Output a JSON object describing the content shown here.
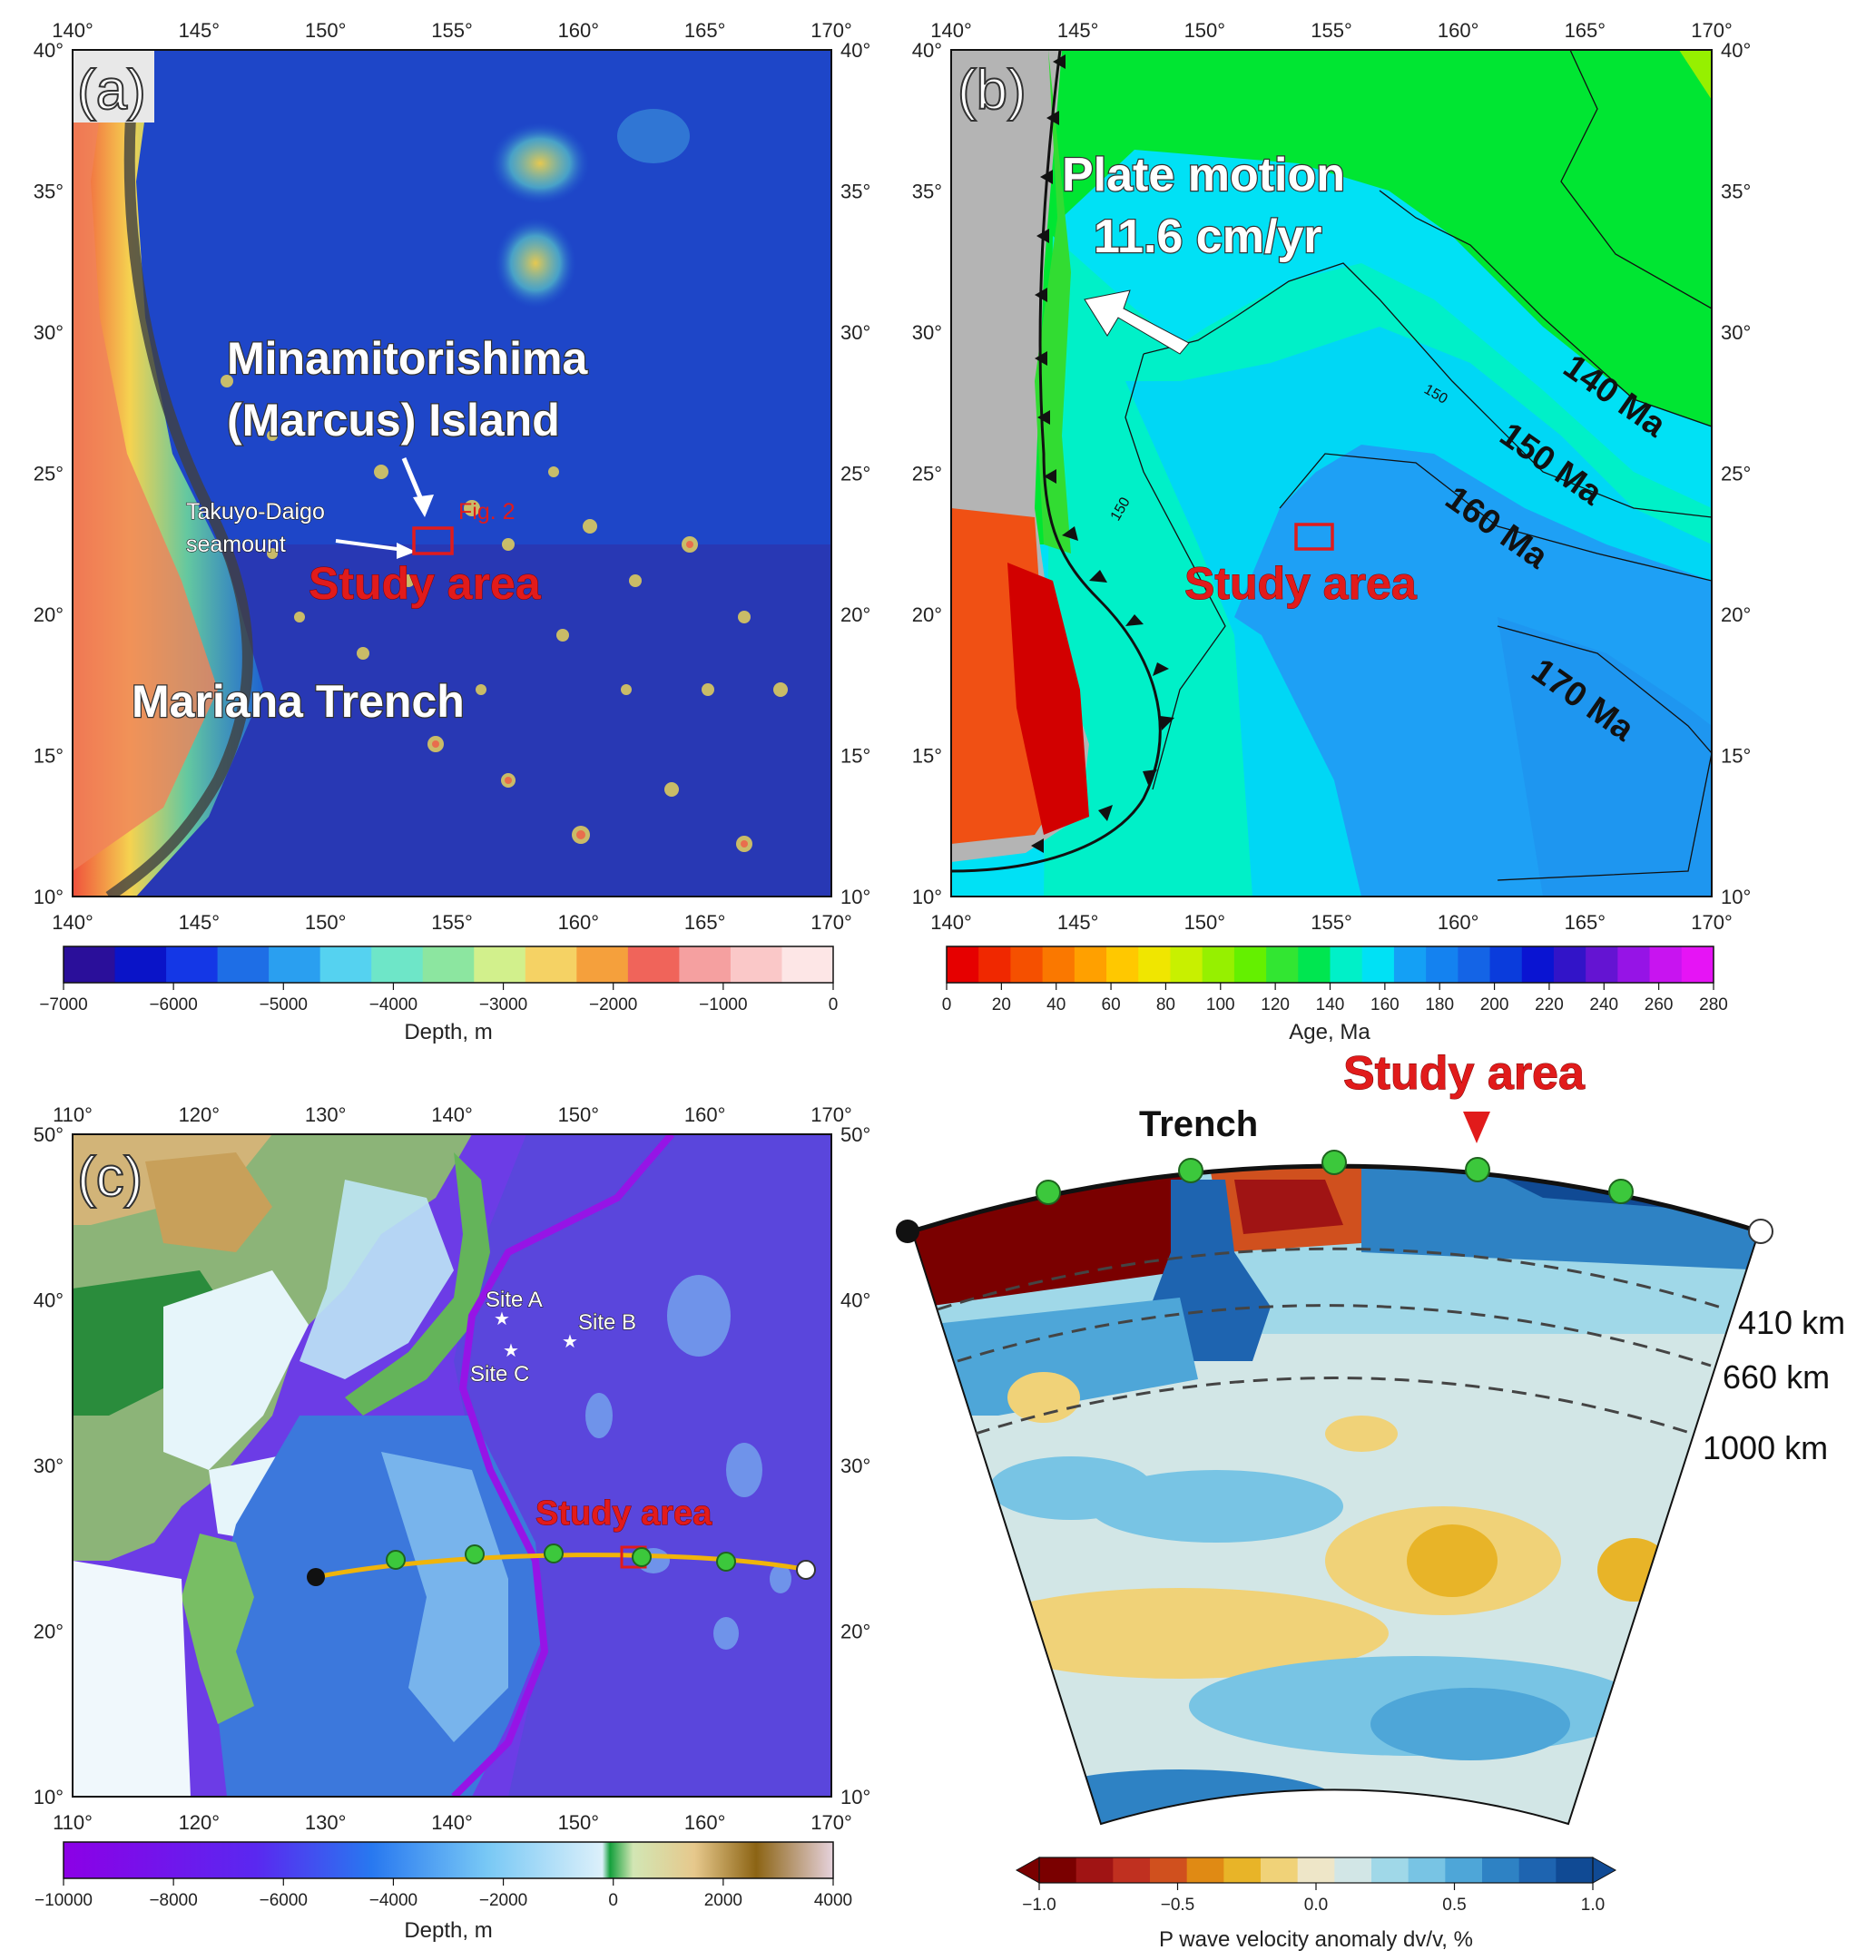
{
  "panel_a": {
    "label": "(a)",
    "lon_ticks": [
      "140°",
      "145°",
      "150°",
      "155°",
      "160°",
      "165°",
      "170°"
    ],
    "lat_ticks": [
      "40°",
      "35°",
      "30°",
      "25°",
      "20°",
      "15°",
      "10°"
    ],
    "title_island_line1": "Minamitorishima",
    "title_island_line2": "(Marcus) Island",
    "seamount_line1": "Takuyo-Daigo",
    "seamount_line2": "seamount",
    "fig_ref": "Fig. 2",
    "study_area": "Study area",
    "trench": "Mariana Trench",
    "colorbar": {
      "label": "Depth, m",
      "ticks": [
        "−7000",
        "−6000",
        "−5000",
        "−4000",
        "−3000",
        "−2000",
        "−1000",
        "0"
      ],
      "colors": [
        "#2a0f9a",
        "#0a14c8",
        "#1437e6",
        "#1e6ee6",
        "#2a9ff0",
        "#55d2f0",
        "#6ee6c8",
        "#8ce6a0",
        "#d2f08c",
        "#f5d264",
        "#f5a03c",
        "#f0645a",
        "#f5a0a0",
        "#fac8c8",
        "#fde6e6"
      ]
    }
  },
  "panel_b": {
    "label": "(b)",
    "lon_ticks": [
      "140°",
      "145°",
      "150°",
      "155°",
      "160°",
      "165°",
      "170°"
    ],
    "lat_ticks": [
      "40°",
      "35°",
      "30°",
      "25°",
      "20°",
      "15°",
      "10°"
    ],
    "plate_motion_line1": "Plate motion",
    "plate_motion_line2": "11.6 cm/yr",
    "isochron_140": "140 Ma",
    "isochron_150": "150 Ma",
    "isochron_160": "160 Ma",
    "isochron_170": "170 Ma",
    "contour_150_a": "150",
    "contour_150_b": "150",
    "study_area": "Study area",
    "colorbar": {
      "label": "Age, Ma",
      "ticks": [
        "0",
        "20",
        "40",
        "60",
        "80",
        "100",
        "120",
        "140",
        "160",
        "180",
        "200",
        "220",
        "240",
        "260",
        "280"
      ],
      "colors": [
        "#e60000",
        "#f02800",
        "#f55000",
        "#fa7800",
        "#ffa000",
        "#ffc800",
        "#f0e600",
        "#c8f000",
        "#96f000",
        "#64f000",
        "#32e632",
        "#00e650",
        "#00f0c8",
        "#00e1f5",
        "#14a0f5",
        "#1482f0",
        "#1464e6",
        "#0a3cdc",
        "#0a14d2",
        "#3214c8",
        "#6414d2",
        "#9614e6",
        "#c814f0",
        "#e614f5"
      ]
    }
  },
  "panel_c": {
    "label": "(c)",
    "lon_ticks": [
      "110°",
      "120°",
      "130°",
      "140°",
      "150°",
      "160°",
      "170°"
    ],
    "lat_ticks": [
      "50°",
      "40°",
      "30°",
      "20°",
      "10°"
    ],
    "site_a": "Site A",
    "site_b": "Site B",
    "site_c": "Site C",
    "study_area": "Study area",
    "colorbar": {
      "label": "Depth, m",
      "ticks": [
        "−10000",
        "−8000",
        "−6000",
        "−4000",
        "−2000",
        "0",
        "2000",
        "4000"
      ]
    }
  },
  "panel_d": {
    "study_area": "Study area",
    "trench": "Trench",
    "depth_410": "410 km",
    "depth_660": "660 km",
    "depth_1000": "1000 km",
    "colorbar": {
      "label": "P wave velocity anomaly dv/v, %",
      "ticks": [
        "−1.0",
        "−0.5",
        "0.0",
        "0.5",
        "1.0"
      ],
      "colors": [
        "#7a0000",
        "#a01414",
        "#c03020",
        "#d0501e",
        "#e08a14",
        "#e8b428",
        "#f0d278",
        "#eee6c8",
        "#d2e6e6",
        "#a0d8e8",
        "#78c4e4",
        "#4ea6d8",
        "#2e82c4",
        "#1e64b0",
        "#104a94"
      ]
    }
  }
}
